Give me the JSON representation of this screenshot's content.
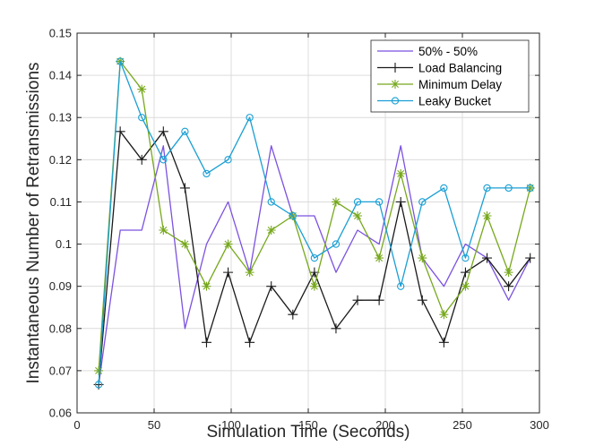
{
  "chart_data": {
    "type": "line",
    "title": "",
    "xlabel": "Simulation Time (Seconds)",
    "ylabel": "Instantaneous Number of Retransmissions",
    "xlim": [
      0,
      300
    ],
    "ylim": [
      0.06,
      0.15
    ],
    "xticks": [
      0,
      50,
      100,
      150,
      200,
      250,
      300
    ],
    "yticks": [
      0.06,
      0.07,
      0.08,
      0.09,
      0.1,
      0.11,
      0.12,
      0.13,
      0.14,
      0.15
    ],
    "xtick_labels": [
      "0",
      "50",
      "100",
      "150",
      "200",
      "250",
      "300"
    ],
    "ytick_labels": [
      "0.06",
      "0.07",
      "0.08",
      "0.09",
      "0.1",
      "0.11",
      "0.12",
      "0.13",
      "0.14",
      "0.15"
    ],
    "grid": true,
    "legend_position": "top-right",
    "x": [
      14,
      28,
      42,
      56,
      70,
      84,
      98,
      112,
      126,
      140,
      154,
      168,
      182,
      196,
      210,
      224,
      238,
      252,
      266,
      280,
      294
    ],
    "series": [
      {
        "name": "50% - 50%",
        "color": "#7b52e0",
        "marker": "none",
        "values": [
          0.0667,
          0.1033,
          0.1033,
          0.1233,
          0.08,
          0.1,
          0.11,
          0.0933,
          0.1233,
          0.1067,
          0.1067,
          0.0933,
          0.1033,
          0.1,
          0.1233,
          0.0967,
          0.09,
          0.1,
          0.0967,
          0.0867,
          0.0967
        ]
      },
      {
        "name": "Load Balancing",
        "color": "#1a1a1a",
        "marker": "plus",
        "values": [
          0.0667,
          0.1267,
          0.12,
          0.1267,
          0.1133,
          0.0767,
          0.0933,
          0.0767,
          0.09,
          0.0833,
          0.0933,
          0.08,
          0.0867,
          0.0867,
          0.11,
          0.0867,
          0.0767,
          0.0933,
          0.0967,
          0.09,
          0.0967
        ]
      },
      {
        "name": "Minimum Delay",
        "color": "#77a81c",
        "marker": "asterisk",
        "values": [
          0.07,
          0.1433,
          0.1367,
          0.1033,
          0.1,
          0.09,
          0.1,
          0.0933,
          0.1033,
          0.1067,
          0.09,
          0.11,
          0.1067,
          0.0967,
          0.1167,
          0.0967,
          0.0833,
          0.09,
          0.1067,
          0.0933,
          0.1133
        ]
      },
      {
        "name": "Leaky Bucket",
        "color": "#1a9fd4",
        "marker": "circle",
        "values": [
          0.0667,
          0.1433,
          0.13,
          0.12,
          0.1267,
          0.1167,
          0.12,
          0.13,
          0.11,
          0.1067,
          0.0967,
          0.1,
          0.11,
          0.11,
          0.09,
          0.11,
          0.1133,
          0.0967,
          0.1133,
          0.1133,
          0.1133
        ]
      }
    ]
  }
}
